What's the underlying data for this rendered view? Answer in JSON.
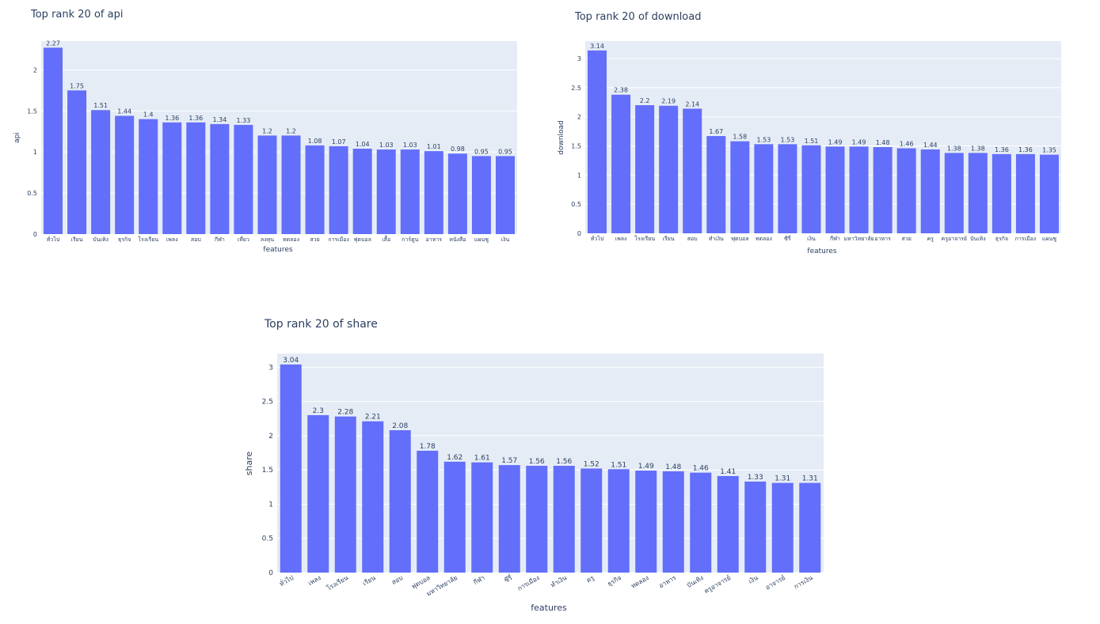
{
  "colors": {
    "bar": "#636efa",
    "plot_bg": "#e5ecf6",
    "grid": "#ffffff",
    "text": "#2a3f5f"
  },
  "chart_data": [
    {
      "type": "bar",
      "title": "Top rank 20 of api",
      "xlabel": "features",
      "ylabel": "api",
      "ylim": [
        0,
        2.35
      ],
      "yticks": [
        "0",
        "0.5",
        "1",
        "1.5",
        "2"
      ],
      "tick_values": [
        0,
        0.5,
        1,
        1.5,
        2
      ],
      "categories": [
        "ทั่วไป",
        "เรียน",
        "บันเทิง",
        "ธุรกิจ",
        "โรงเรียน",
        "เพลง",
        "สอบ",
        "กีฬา",
        "เที่ยว",
        "ลงทุน",
        "ทดลอง",
        "สวย",
        "การเมือง",
        "ฟุตบอล",
        "เสื้อ",
        "การ์ตูน",
        "อาหาร",
        "หนังสือ",
        "แผนชู",
        "เงิน"
      ],
      "values": [
        2.27,
        1.75,
        1.51,
        1.44,
        1.4,
        1.36,
        1.36,
        1.34,
        1.33,
        1.2,
        1.2,
        1.08,
        1.07,
        1.04,
        1.03,
        1.03,
        1.01,
        0.98,
        0.95,
        0.95
      ],
      "labels": [
        "2.27",
        "1.75",
        "1.51",
        "1.44",
        "1.4",
        "1.36",
        "1.36",
        "1.34",
        "1.33",
        "1.2",
        "1.2",
        "1.08",
        "1.07",
        "1.04",
        "1.03",
        "1.03",
        "1.01",
        "0.98",
        "0.95",
        "0.95"
      ]
    },
    {
      "type": "bar",
      "title": "Top rank 20 of download",
      "xlabel": "features",
      "ylabel": "download",
      "ylim": [
        0,
        3.3
      ],
      "yticks": [
        "0",
        "0.5",
        "1",
        "1.5",
        "2",
        "2.5",
        "3"
      ],
      "tick_values": [
        0,
        0.5,
        1,
        1.5,
        2,
        2.5,
        3
      ],
      "categories": [
        "ทั่วไป",
        "เพลง",
        "โรงเรียน",
        "เรียน",
        "สอบ",
        "ทำเงิน",
        "ฟุตบอล",
        "ทดลอง",
        "ซีรี่",
        "เงิน",
        "กีฬา",
        "มหาวิทยาลัย",
        "อาหาร",
        "สวย",
        "ครู",
        "ครูอาจารย์",
        "บันเทิง",
        "ธุรกิจ",
        "การเมือง",
        "แผนชู"
      ],
      "values": [
        3.14,
        2.38,
        2.2,
        2.19,
        2.14,
        1.67,
        1.58,
        1.53,
        1.53,
        1.51,
        1.49,
        1.49,
        1.48,
        1.46,
        1.44,
        1.38,
        1.38,
        1.36,
        1.36,
        1.35
      ],
      "labels": [
        "3.14",
        "2.38",
        "2.2",
        "2.19",
        "2.14",
        "1.67",
        "1.58",
        "1.53",
        "1.53",
        "1.51",
        "1.49",
        "1.49",
        "1.48",
        "1.46",
        "1.44",
        "1.38",
        "1.38",
        "1.36",
        "1.36",
        "1.35"
      ]
    },
    {
      "type": "bar",
      "title": "Top rank 20 of share",
      "xlabel": "features",
      "ylabel": "share",
      "ylim": [
        0,
        3.2
      ],
      "yticks": [
        "0",
        "0.5",
        "1",
        "1.5",
        "2",
        "2.5",
        "3"
      ],
      "tick_values": [
        0,
        0.5,
        1,
        1.5,
        2,
        2.5,
        3
      ],
      "categories": [
        "ทั่วไป",
        "เพลง",
        "โรงเรียน",
        "เรียน",
        "สอบ",
        "ฟุตบอล",
        "มหาวิทยาลัย",
        "กีฬา",
        "ซีรี่",
        "การเมือง",
        "ทำเงิน",
        "ครู",
        "ธุรกิจ",
        "ทดลอง",
        "อาหาร",
        "บันเทิง",
        "ครูอาจารย์",
        "เงิน",
        "อาจารย์",
        "การเงิน"
      ],
      "values": [
        3.04,
        2.3,
        2.28,
        2.21,
        2.08,
        1.78,
        1.62,
        1.61,
        1.57,
        1.56,
        1.56,
        1.52,
        1.51,
        1.49,
        1.48,
        1.46,
        1.41,
        1.33,
        1.31,
        1.31
      ],
      "labels": [
        "3.04",
        "2.3",
        "2.28",
        "2.21",
        "2.08",
        "1.78",
        "1.62",
        "1.61",
        "1.57",
        "1.56",
        "1.56",
        "1.52",
        "1.51",
        "1.49",
        "1.48",
        "1.46",
        "1.41",
        "1.33",
        "1.31",
        "1.31"
      ]
    }
  ]
}
